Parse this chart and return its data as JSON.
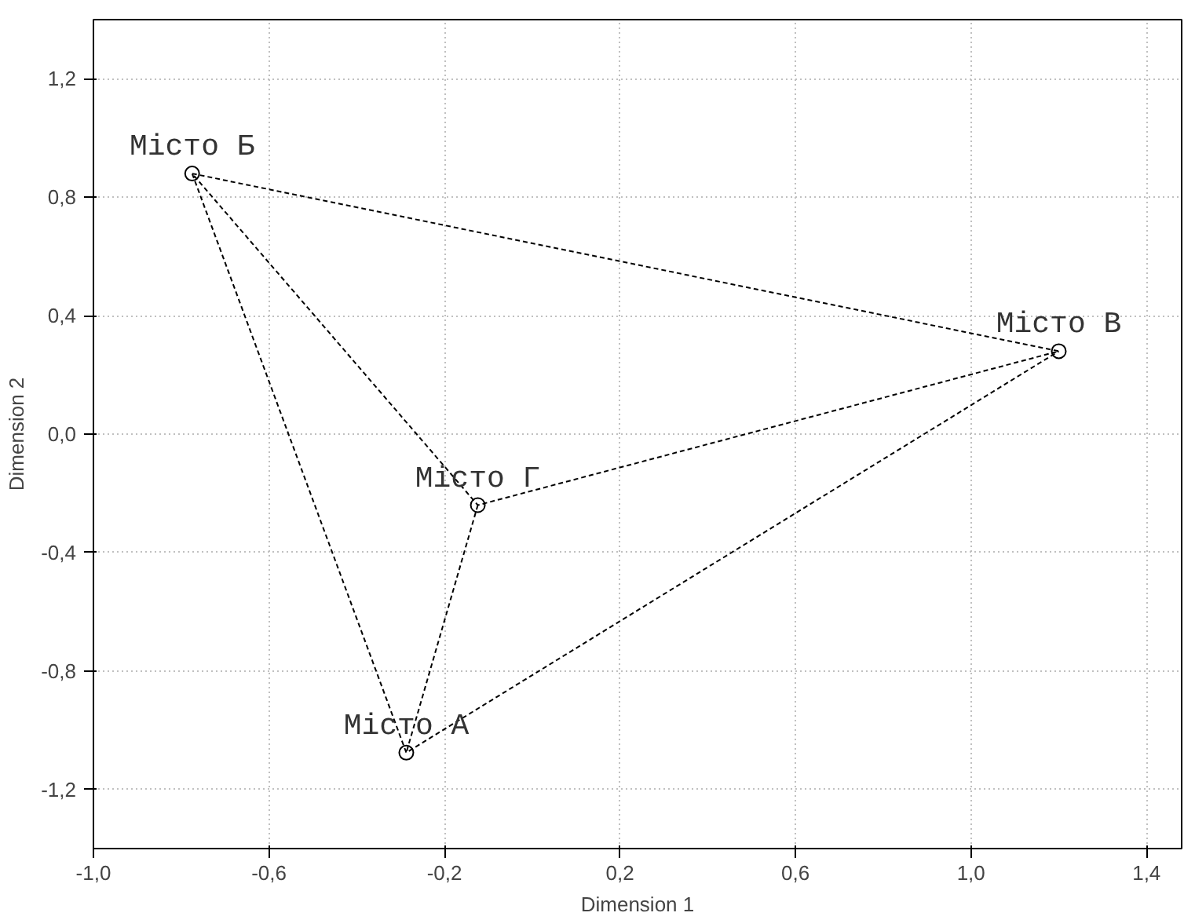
{
  "chart_data": {
    "type": "scatter",
    "xlabel": "Dimension 1",
    "ylabel": "Dimension 2",
    "xlim": [
      -1.0,
      1.48
    ],
    "ylim": [
      -1.4,
      1.4
    ],
    "xticks": [
      {
        "value": -1.0,
        "label": "-1,0"
      },
      {
        "value": -0.6,
        "label": "-0,6"
      },
      {
        "value": -0.2,
        "label": "-0,2"
      },
      {
        "value": 0.2,
        "label": "0,2"
      },
      {
        "value": 0.6,
        "label": "0,6"
      },
      {
        "value": 1.0,
        "label": "1,0"
      },
      {
        "value": 1.4,
        "label": "1,4"
      }
    ],
    "yticks": [
      {
        "value": -1.2,
        "label": "-1,2"
      },
      {
        "value": -0.8,
        "label": "-0,8"
      },
      {
        "value": -0.4,
        "label": "-0,4"
      },
      {
        "value": 0.0,
        "label": "0,0"
      },
      {
        "value": 0.4,
        "label": "0,4"
      },
      {
        "value": 0.8,
        "label": "0,8"
      },
      {
        "value": 1.2,
        "label": "1,2"
      }
    ],
    "grid": true,
    "series": [
      {
        "type": "line",
        "color": "#000000",
        "line_style": "dashed",
        "x": [
          -0.775,
          1.2,
          -0.124,
          -0.775,
          -0.287,
          1.2,
          null,
          -0.124,
          -0.287
        ],
        "values": [
          0.88,
          0.28,
          -0.24,
          0.88,
          -1.076,
          0.28,
          null,
          -0.24,
          -1.076
        ]
      },
      {
        "color": "#000000",
        "marker": "circle",
        "x": [
          -0.287,
          -0.775,
          1.2,
          -0.124
        ],
        "values": [
          -1.076,
          0.88,
          0.28,
          -0.24
        ]
      }
    ],
    "annotations": [
      {
        "text": "Місто А",
        "x": -0.287,
        "y": -1.076
      },
      {
        "text": "Місто Б",
        "x": -0.775,
        "y": 0.88
      },
      {
        "text": "Місто В",
        "x": 1.2,
        "y": 0.28
      },
      {
        "text": "Місто Г",
        "x": -0.124,
        "y": -0.24
      }
    ]
  }
}
